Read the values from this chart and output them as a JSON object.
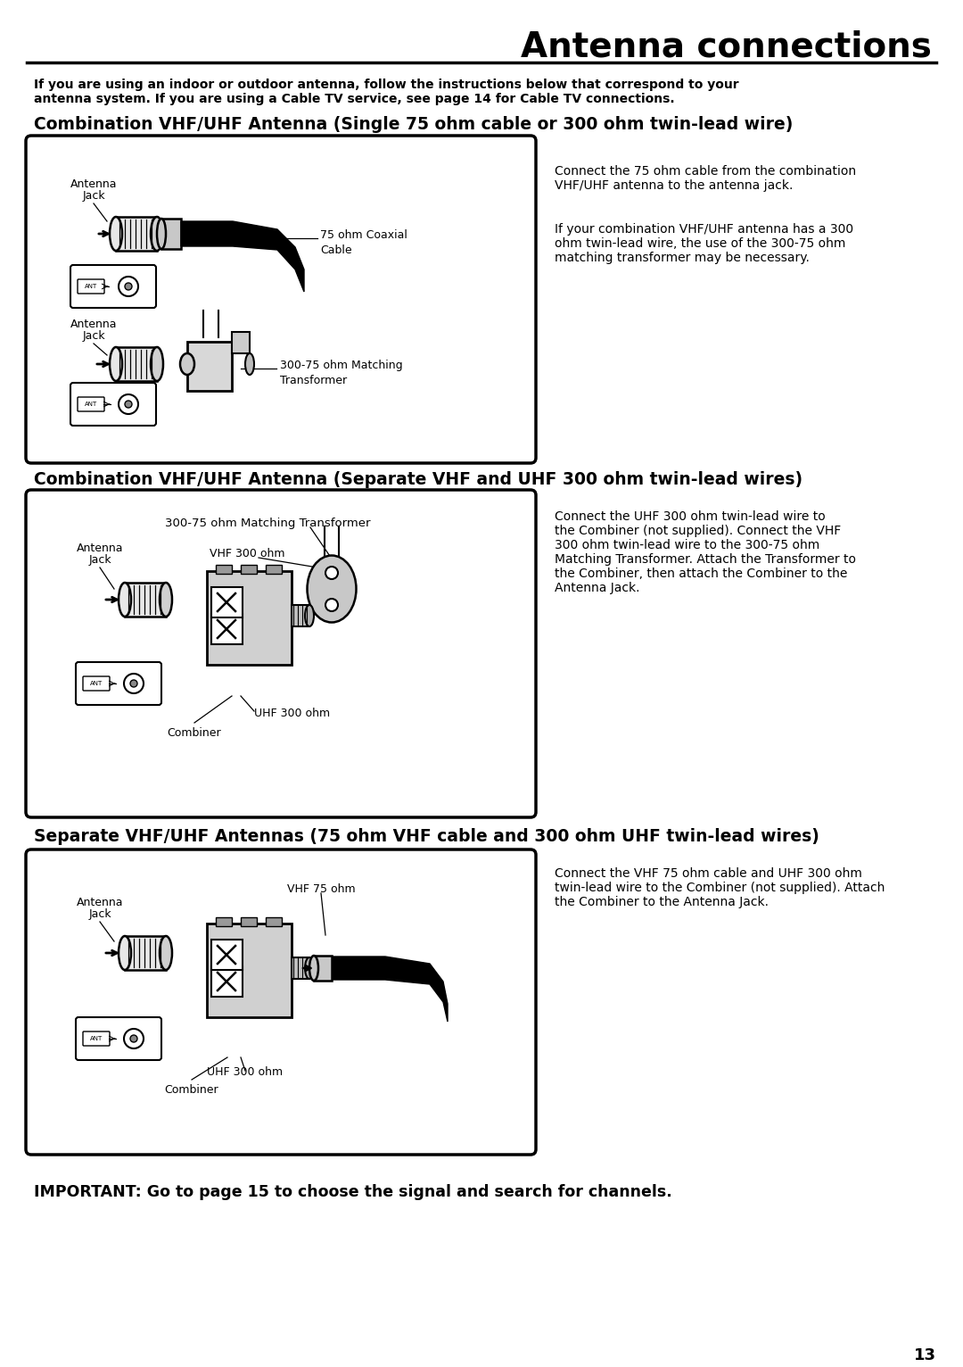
{
  "title": "Antenna connections",
  "page_number": "13",
  "background_color": "#ffffff",
  "text_color": "#000000",
  "intro_text_line1": "If you are using an indoor or outdoor antenna, follow the instructions below that correspond to your",
  "intro_text_line2": "antenna system. If you are using a Cable TV service, see page 14 for Cable TV connections.",
  "section1_heading": "Combination VHF/UHF Antenna (Single 75 ohm cable or 300 ohm twin-lead wire)",
  "section1_desc1_line1": "Connect the 75 ohm cable from the combination",
  "section1_desc1_line2": "VHF/UHF antenna to the antenna jack.",
  "section1_desc2_line1": "If your combination VHF/UHF antenna has a 300",
  "section1_desc2_line2": "ohm twin-lead wire, the use of the 300-75 ohm",
  "section1_desc2_line3": "matching transformer may be necessary.",
  "section2_heading": "Combination VHF/UHF Antenna (Separate VHF and UHF 300 ohm twin-lead wires)",
  "section2_desc_line1": "Connect the UHF 300 ohm twin-lead wire to",
  "section2_desc_line2": "the Combiner (not supplied). Connect the VHF",
  "section2_desc_line3": "300 ohm twin-lead wire to the 300-75 ohm",
  "section2_desc_line4": "Matching Transformer. Attach the Transformer to",
  "section2_desc_line5": "the Combiner, then attach the Combiner to the",
  "section2_desc_line6": "Antenna Jack.",
  "section3_heading": "Separate VHF/UHF Antennas (75 ohm VHF cable and 300 ohm UHF twin-lead wires)",
  "section3_desc_line1": "Connect the VHF 75 ohm cable and UHF 300 ohm",
  "section3_desc_line2": "twin-lead wire to the Combiner (not supplied). Attach",
  "section3_desc_line3": "the Combiner to the Antenna Jack.",
  "footer_text": "IMPORTANT: Go to page 15 to choose the signal and search for channels.",
  "label_antenna_jack": "Antenna\nJack",
  "label_75ohm_coaxial": "75 ohm Coaxial\nCable",
  "label_300_75_transformer": "300-75 ohm Matching\nTransformer",
  "label_300_75_matching": "300-75 ohm Matching Transformer",
  "label_vhf300": "VHF 300 ohm",
  "label_uhf300": "UHF 300 ohm",
  "label_combiner": "Combiner",
  "label_vhf75": "VHF 75 ohm",
  "label_uhf300_s3": "UHF 300 ohm"
}
